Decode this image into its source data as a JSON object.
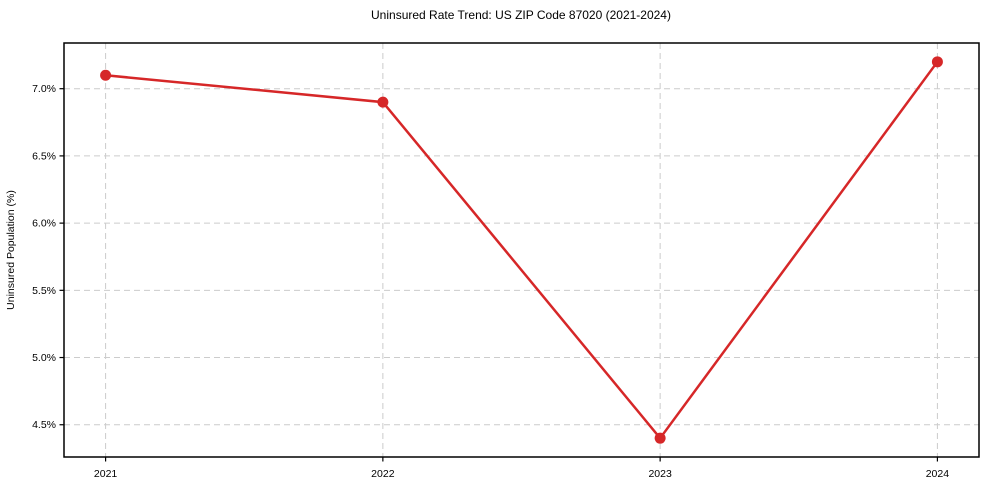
{
  "figure": {
    "background": "#ffffff"
  },
  "chart_data": {
    "type": "line",
    "title": "Uninsured Rate Trend: US ZIP Code 87020 (2021-2024)",
    "xlabel": "",
    "ylabel": "Uninsured Population (%)",
    "x": [
      2021,
      2022,
      2023,
      2024
    ],
    "x_tick_labels": [
      "2021",
      "2022",
      "2023",
      "2024"
    ],
    "series": [
      {
        "name": "Uninsured Population (%)",
        "values": [
          7.1,
          6.9,
          4.4,
          7.2
        ]
      }
    ],
    "y_ticks": [
      4.5,
      5.0,
      5.5,
      6.0,
      6.5,
      7.0
    ],
    "y_tick_labels": [
      "4.5%",
      "5.0%",
      "5.5%",
      "6.0%",
      "6.5%",
      "7.0%"
    ],
    "xlim": [
      2020.85,
      2024.15
    ],
    "ylim": [
      4.26,
      7.34
    ],
    "grid": {
      "show": true,
      "style": "dashed",
      "color": "#cccccc"
    },
    "legend_position": "none",
    "line_color": "#d62728",
    "marker": "circle",
    "marker_radius": 5.5,
    "line_width": 2.5,
    "spine_color": "#000000",
    "tick_color": "#000000",
    "text_color": "#000000"
  }
}
